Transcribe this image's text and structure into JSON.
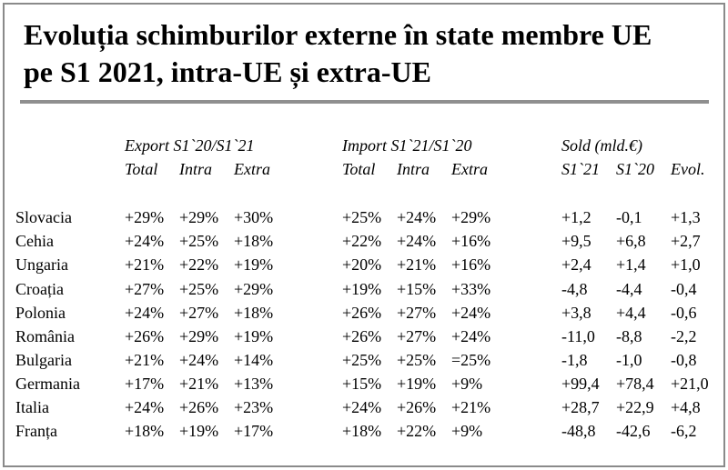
{
  "title": {
    "line1": "Evoluția schimburilor externe în state membre UE",
    "line2": "pe S1 2021, intra-UE și extra-UE"
  },
  "groups": {
    "export": "Export S1`20/S1`21",
    "import": "Import S1`21/S1`20",
    "sold": "Sold (mld.€)"
  },
  "subheaders": {
    "export": [
      "Total",
      "Intra",
      "Extra"
    ],
    "import": [
      "Total",
      "Intra",
      "Extra"
    ],
    "sold": [
      "S1`21",
      "S1`20",
      "Evol."
    ]
  },
  "rows": [
    {
      "country": "Slovacia",
      "values": [
        "+29%",
        "+29%",
        "+30%",
        "+25%",
        "+24%",
        "+29%",
        "+1,2",
        "-0,1",
        "+1,3"
      ]
    },
    {
      "country": "Cehia",
      "values": [
        "+24%",
        "+25%",
        "+18%",
        "+22%",
        "+24%",
        "+16%",
        "+9,5",
        "+6,8",
        "+2,7"
      ]
    },
    {
      "country": "Ungaria",
      "values": [
        "+21%",
        "+22%",
        "+19%",
        "+20%",
        "+21%",
        "+16%",
        "+2,4",
        "+1,4",
        "+1,0"
      ]
    },
    {
      "country": "Croația",
      "values": [
        "+27%",
        "+25%",
        "+29%",
        "+19%",
        "+15%",
        "+33%",
        "-4,8",
        "-4,4",
        "-0,4"
      ]
    },
    {
      "country": "Polonia",
      "values": [
        "+24%",
        "+27%",
        "+18%",
        "+26%",
        "+27%",
        "+24%",
        "+3,8",
        "+4,4",
        "-0,6"
      ]
    },
    {
      "country": "România",
      "values": [
        "+26%",
        "+29%",
        "+19%",
        "+26%",
        "+27%",
        "+24%",
        "-11,0",
        "-8,8",
        "-2,2"
      ]
    },
    {
      "country": "Bulgaria",
      "values": [
        "+21%",
        "+24%",
        "+14%",
        "+25%",
        "+25%",
        "=25%",
        "-1,8",
        "-1,0",
        "-0,8"
      ]
    },
    {
      "country": "Germania",
      "values": [
        "+17%",
        "+21%",
        "+13%",
        "+15%",
        "+19%",
        "+9%",
        "+99,4",
        "+78,4",
        "+21,0"
      ]
    },
    {
      "country": "Italia",
      "values": [
        "+24%",
        "+26%",
        "+23%",
        "+24%",
        "+26%",
        "+21%",
        "+28,7",
        "+22,9",
        "+4,8"
      ]
    },
    {
      "country": "Franța",
      "values": [
        "+18%",
        "+19%",
        "+17%",
        "+18%",
        "+22%",
        "+9%",
        "-48,8",
        "-42,6",
        "-6,2"
      ]
    }
  ]
}
